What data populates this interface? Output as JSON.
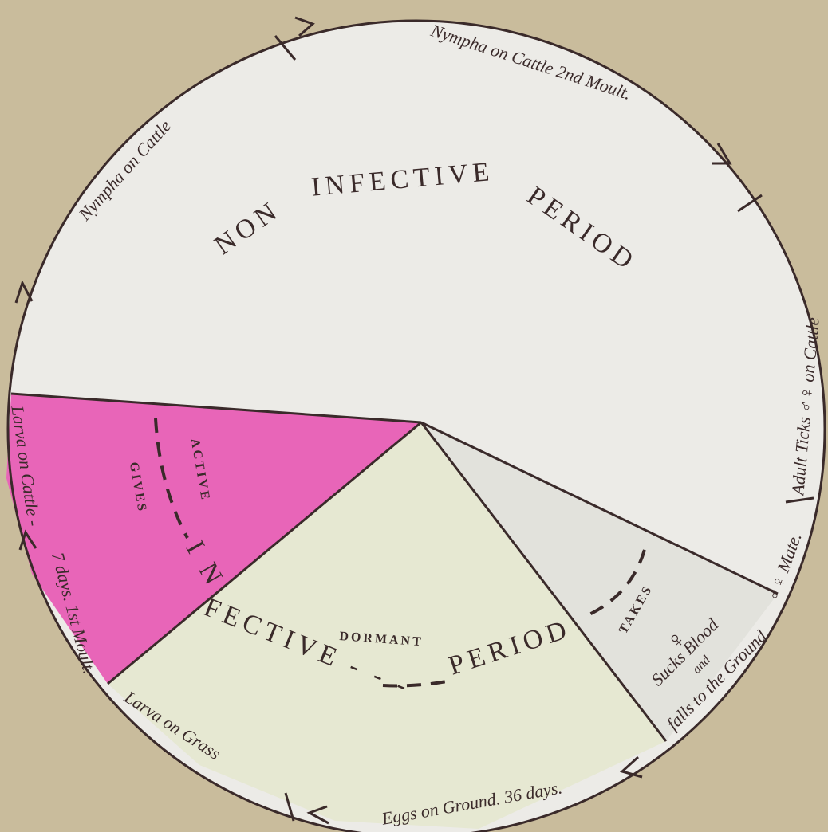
{
  "title": {
    "part1": "NON",
    "part2": "INFECTIVE",
    "part3": "PERIOD"
  },
  "stages": {
    "nympha_moult": "Nympha on Cattle 2nd Moult.",
    "nympha": "Nympha on Cattle",
    "adults": "Adult Ticks ♂♀ on Cattle",
    "mate": "♂♀ Mate.",
    "female_symbol": "♀",
    "sucks": "Sucks Blood",
    "and": "and",
    "falls": "falls to the Ground",
    "eggs": "Eggs on Ground. 36 days.",
    "larva_grass": "Larva on Grass",
    "moult1": "7 days. 1st Moult.",
    "larva_cattle": "Larva on Cattle -"
  },
  "infective": {
    "part1": "I N",
    "part2": "FECTIVE - - -",
    "part3": "PERIOD",
    "active": "ACTIVE",
    "gives": "GIVES",
    "dormant": "DORMANT",
    "takes": "TAKES"
  }
}
